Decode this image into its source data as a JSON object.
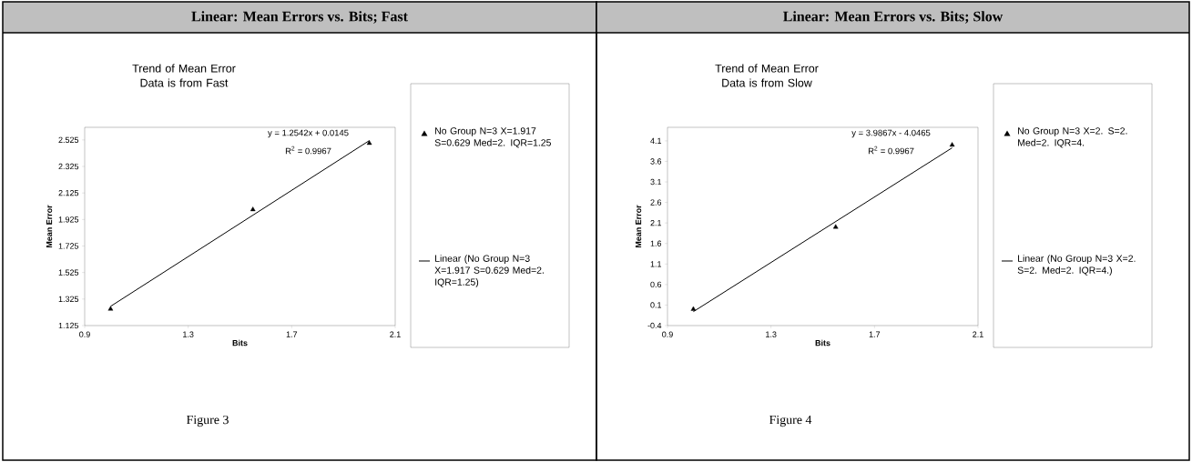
{
  "chart_data": [
    {
      "type": "scatter",
      "title": "Linear: Mean Errors vs. Bits; Fast",
      "subtitle": "Trend of Mean Error Data is from Fast",
      "xlabel": "Bits",
      "ylabel": "Mean Error",
      "series": [
        {
          "name": "No Group N=3 X=1.917 S=0.629 Med=2. IQR=1.25",
          "marker": "triangle",
          "color": "#000000",
          "x": [
            1,
            1.55,
            2
          ],
          "values": [
            1.25,
            2.0,
            2.5
          ]
        },
        {
          "name": "Linear (No Group N=3 X=1.917 S=0.629 Med=2. IQR=1.25)",
          "type": "line",
          "marker": "none",
          "color": "#000000",
          "x": [
            1,
            2
          ],
          "values": [
            1.27,
            2.52
          ]
        }
      ],
      "xlim": [
        0.9,
        2.1
      ],
      "xticks": [
        0.9,
        1.3,
        1.7,
        2.1
      ],
      "ylim": [
        1.125,
        2.62
      ],
      "yticks": [
        1.125,
        1.325,
        1.525,
        1.725,
        1.925,
        2.125,
        2.325,
        2.525
      ],
      "annotations": [
        "y = 1.2542x + 0.0145",
        "R$^{2}$ = 0.9967",
        "Figure 3"
      ],
      "legend": "right",
      "grid": false
    },
    {
      "type": "scatter",
      "title": "Linear: Mean Errors vs. Bits; Slow",
      "subtitle": "Trend of Mean Error Data is from Slow",
      "xlabel": "Bits",
      "ylabel": "Mean Error",
      "series": [
        {
          "name": "No Group N=3 X=2. S=2. Med=2. IQR=4.",
          "marker": "triangle",
          "color": "#000000",
          "x": [
            1,
            1.55,
            2
          ],
          "values": [
            0.0,
            2.0,
            4.0
          ]
        },
        {
          "name": "Linear (No Group N=3 X=2. S=2. Med=2. IQR=4.)",
          "type": "line",
          "marker": "none",
          "color": "#000000",
          "x": [
            1,
            2
          ],
          "values": [
            -0.06,
            3.93
          ]
        }
      ],
      "xlim": [
        0.9,
        2.1
      ],
      "xticks": [
        0.9,
        1.3,
        1.7,
        2.1
      ],
      "ylim": [
        -0.4,
        4.43
      ],
      "yticks": [
        -0.4,
        0.1,
        0.6,
        1.1,
        1.6,
        2.1,
        2.6,
        3.1,
        3.6,
        4.1
      ],
      "annotations": [
        "y = 3.9867x - 4.0465",
        "R$^{2}$ = 0.9967",
        "Figure 4"
      ],
      "legend": "right",
      "grid": false
    }
  ]
}
